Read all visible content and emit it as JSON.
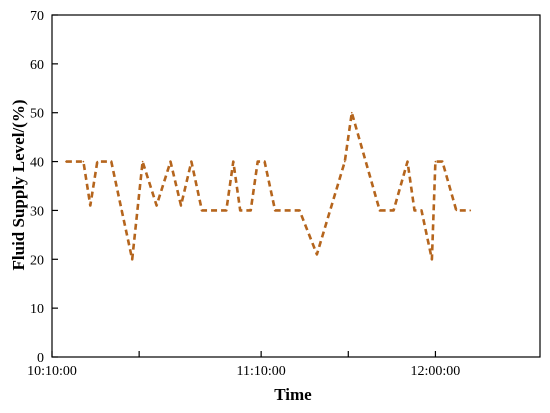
{
  "chart_data": {
    "type": "line",
    "title": "",
    "xlabel": "Time",
    "ylabel": "Fluid Supply Level/(%)",
    "ylim": [
      0,
      70
    ],
    "y_ticks": [
      0,
      10,
      20,
      30,
      40,
      50,
      60,
      70
    ],
    "xlim": [
      "10:10:00",
      "12:30:00"
    ],
    "x_ticks": [
      "10:10:00",
      "10:35:00",
      "11:10:00",
      "11:35:00",
      "12:00:00"
    ],
    "x_tick_labels": [
      "10:10:00",
      "11:10:00",
      "12:00:00"
    ],
    "grid": false,
    "series": [
      {
        "color": "#b5651d",
        "line_style": "dashed",
        "x": [
          "10:14:00",
          "10:19:00",
          "10:21:00",
          "10:23:00",
          "10:27:00",
          "10:30:00",
          "10:33:00",
          "10:36:00",
          "10:40:00",
          "10:44:00",
          "10:47:00",
          "10:50:00",
          "10:53:00",
          "10:56:00",
          "11:00:00",
          "11:02:00",
          "11:04:00",
          "11:07:00",
          "11:09:00",
          "11:11:00",
          "11:14:00",
          "11:18:00",
          "11:21:00",
          "11:26:00",
          "11:34:00",
          "11:36:00",
          "11:44:00",
          "11:48:00",
          "11:52:00",
          "11:54:00",
          "11:56:00",
          "11:59:00",
          "12:00:00",
          "12:02:00",
          "12:06:00",
          "12:10:00"
        ],
        "values": [
          40,
          40,
          31,
          40,
          40,
          30,
          20,
          40,
          31,
          40,
          31,
          40,
          30,
          30,
          30,
          40,
          30,
          30,
          40,
          40,
          30,
          30,
          30,
          21,
          40,
          50,
          30,
          30,
          40,
          30,
          30,
          20,
          40,
          40,
          30,
          30
        ]
      }
    ]
  }
}
